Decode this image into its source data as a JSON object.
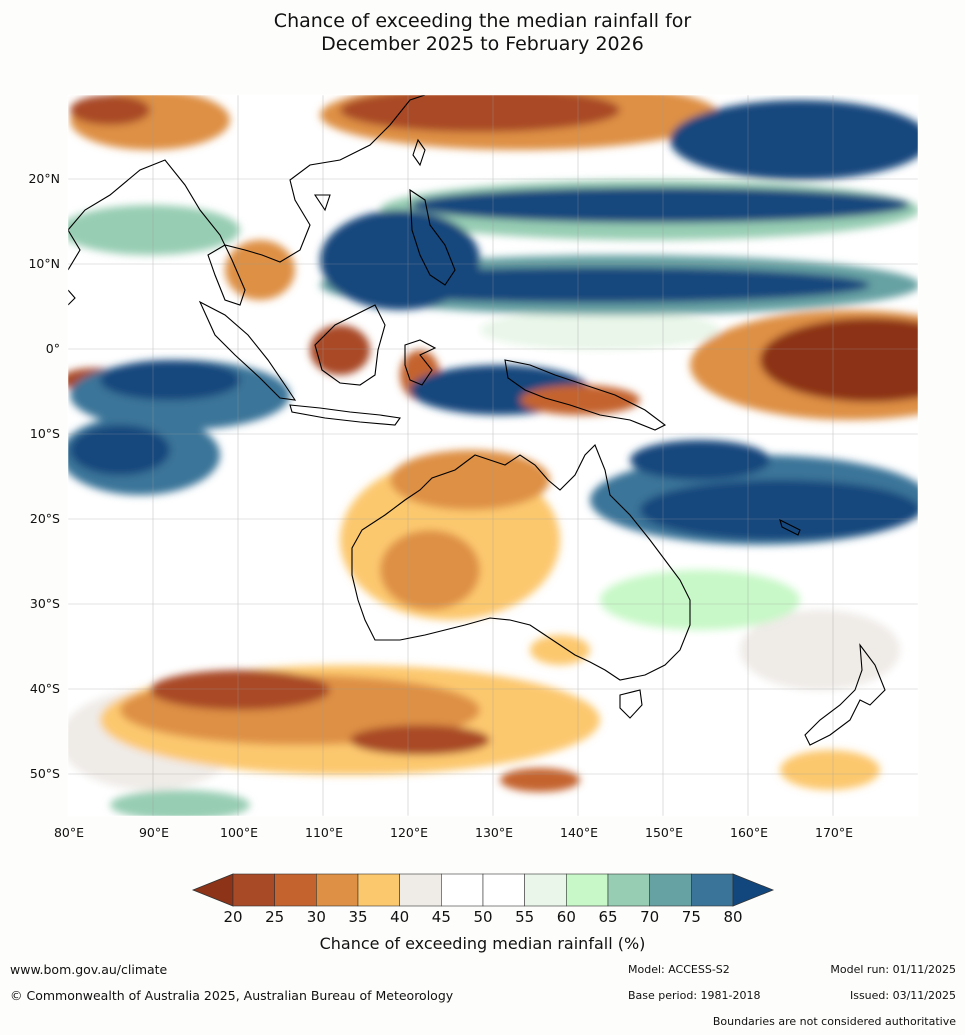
{
  "title": {
    "line1": "Chance of exceeding the median rainfall for",
    "line2": "December 2025 to February 2026"
  },
  "map": {
    "lat_labels": [
      "20°N",
      "10°N",
      "0°",
      "10°S",
      "20°S",
      "30°S",
      "40°S",
      "50°S"
    ],
    "lon_labels": [
      "80°E",
      "90°E",
      "100°E",
      "110°E",
      "120°E",
      "130°E",
      "140°E",
      "150°E",
      "160°E",
      "170°E"
    ]
  },
  "colorbar": {
    "ticks": [
      "20",
      "25",
      "30",
      "35",
      "40",
      "45",
      "50",
      "55",
      "60",
      "65",
      "70",
      "75",
      "80"
    ],
    "colors": [
      "#8c3318",
      "#a94a26",
      "#c4632e",
      "#de9044",
      "#fcc86e",
      "#efebe7",
      "#ffffff",
      "#ffffff",
      "#e9f6e9",
      "#c8f8c8",
      "#97cdb3",
      "#66a1a3",
      "#3b7499",
      "#12477d"
    ],
    "label": "Chance of exceeding median rainfall (%)"
  },
  "footer": {
    "url": "www.bom.gov.au/climate",
    "copyright": "© Commonwealth of Australia 2025, Australian Bureau of Meteorology",
    "model": "Model: ACCESS-S2",
    "base_period": "Base period: 1981-2018",
    "model_run": "Model run: 01/11/2025",
    "issued": "Issued: 03/11/2025",
    "disclaimer": "Boundaries are not considered authoritative"
  }
}
